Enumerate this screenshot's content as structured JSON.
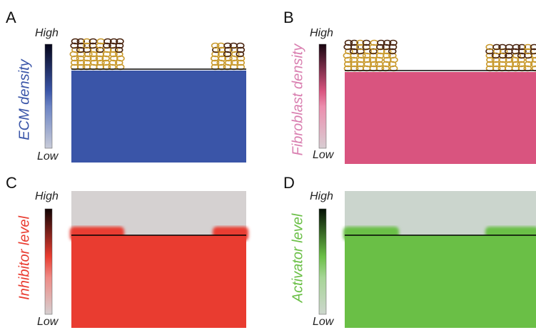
{
  "panels": [
    {
      "letter": "A",
      "label": "ECM density",
      "high": "High",
      "low": "Low"
    },
    {
      "letter": "B",
      "label": "Fibroblast density",
      "high": "High",
      "low": "Low"
    },
    {
      "letter": "C",
      "label": "Inhibitor level",
      "high": "High",
      "low": "Low"
    },
    {
      "letter": "D",
      "label": "Activator level",
      "high": "High",
      "low": "Low"
    }
  ]
}
